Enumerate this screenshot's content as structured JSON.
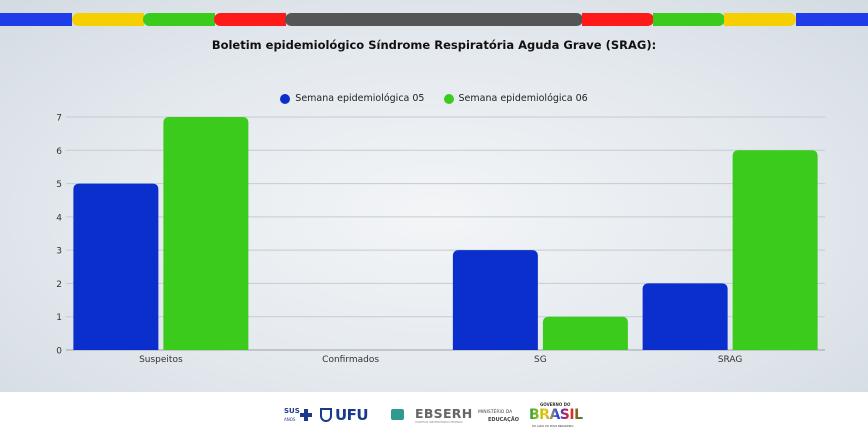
{
  "chart_data": {
    "type": "bar",
    "title": "Boletim epidemiológico Síndrome Respiratória Aguda Grave (SRAG):",
    "categories": [
      "Suspeitos",
      "Confirmados",
      "SG",
      "SRAG"
    ],
    "series": [
      {
        "name": "Semana epidemiológica 05",
        "color": "#0a2fcc",
        "values": [
          5,
          0,
          3,
          2
        ]
      },
      {
        "name": "Semana epidemiológica 06",
        "color": "#3acb1c",
        "values": [
          7,
          0,
          1,
          6
        ]
      }
    ],
    "yticks": [
      "0",
      "1",
      "2",
      "3",
      "4",
      "5",
      "6",
      "7"
    ],
    "ylim": [
      0,
      7
    ],
    "grid": true,
    "legend": "top-center"
  },
  "topbar": {
    "colors": [
      "#1e3de8",
      "#f6cf00",
      "#3acb1c",
      "#ff1a1a",
      "#555555",
      "#ff1a1a",
      "#3acb1c",
      "#f6cf00",
      "#1e3de8"
    ]
  },
  "footer": {
    "logos": {
      "sus": "SUS",
      "sus_sub": "ANOS",
      "ufu": "UFU",
      "ebserh": "EBSERH",
      "ebserh_sub": "HOSPITAIS UNIVERSITÁRIOS FEDERAIS",
      "ministerio": "MINISTÉRIO DA",
      "educacao": "EDUCAÇÃO",
      "governo": "GOVERNO DO",
      "brasil": "BRASIL",
      "lema": "DO LADO DO POVO BRASILEIRO"
    }
  }
}
